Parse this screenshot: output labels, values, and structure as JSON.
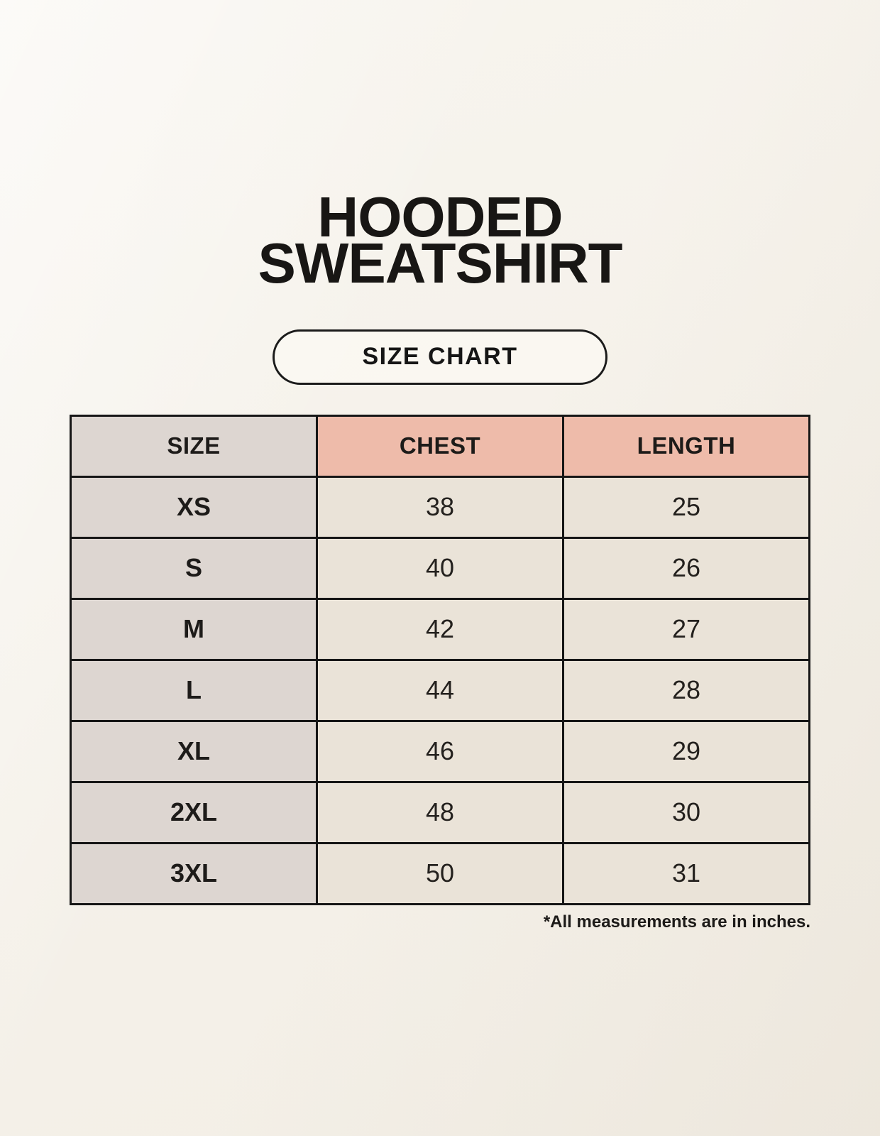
{
  "page": {
    "background_color": "#f5f1e9",
    "text_color": "#1c1a18"
  },
  "header": {
    "title_line1": "HOODED",
    "title_line2": "SWEATSHIRT",
    "badge_label": "SIZE CHART"
  },
  "table": {
    "columns": [
      "SIZE",
      "CHEST",
      "LENGTH"
    ],
    "rows": [
      {
        "size": "XS",
        "chest": "38",
        "length": "25"
      },
      {
        "size": "S",
        "chest": "40",
        "length": "26"
      },
      {
        "size": "M",
        "chest": "42",
        "length": "27"
      },
      {
        "size": "L",
        "chest": "44",
        "length": "28"
      },
      {
        "size": "XL",
        "chest": "46",
        "length": "29"
      },
      {
        "size": "2XL",
        "chest": "48",
        "length": "30"
      },
      {
        "size": "3XL",
        "chest": "50",
        "length": "31"
      }
    ],
    "header_accent_color": "#eebbaa",
    "size_column_color": "#ddd6d1",
    "cell_color": "#eae3d8",
    "border_color": "#161616"
  },
  "footer": {
    "note": "*All measurements are in inches."
  },
  "chart_data": {
    "type": "table",
    "title": "HOODED SWEATSHIRT — SIZE CHART",
    "columns": [
      "SIZE",
      "CHEST",
      "LENGTH"
    ],
    "rows": [
      [
        "XS",
        38,
        25
      ],
      [
        "S",
        40,
        26
      ],
      [
        "M",
        42,
        27
      ],
      [
        "L",
        44,
        28
      ],
      [
        "XL",
        46,
        29
      ],
      [
        "2XL",
        48,
        30
      ],
      [
        "3XL",
        50,
        31
      ]
    ],
    "units": "inches"
  }
}
